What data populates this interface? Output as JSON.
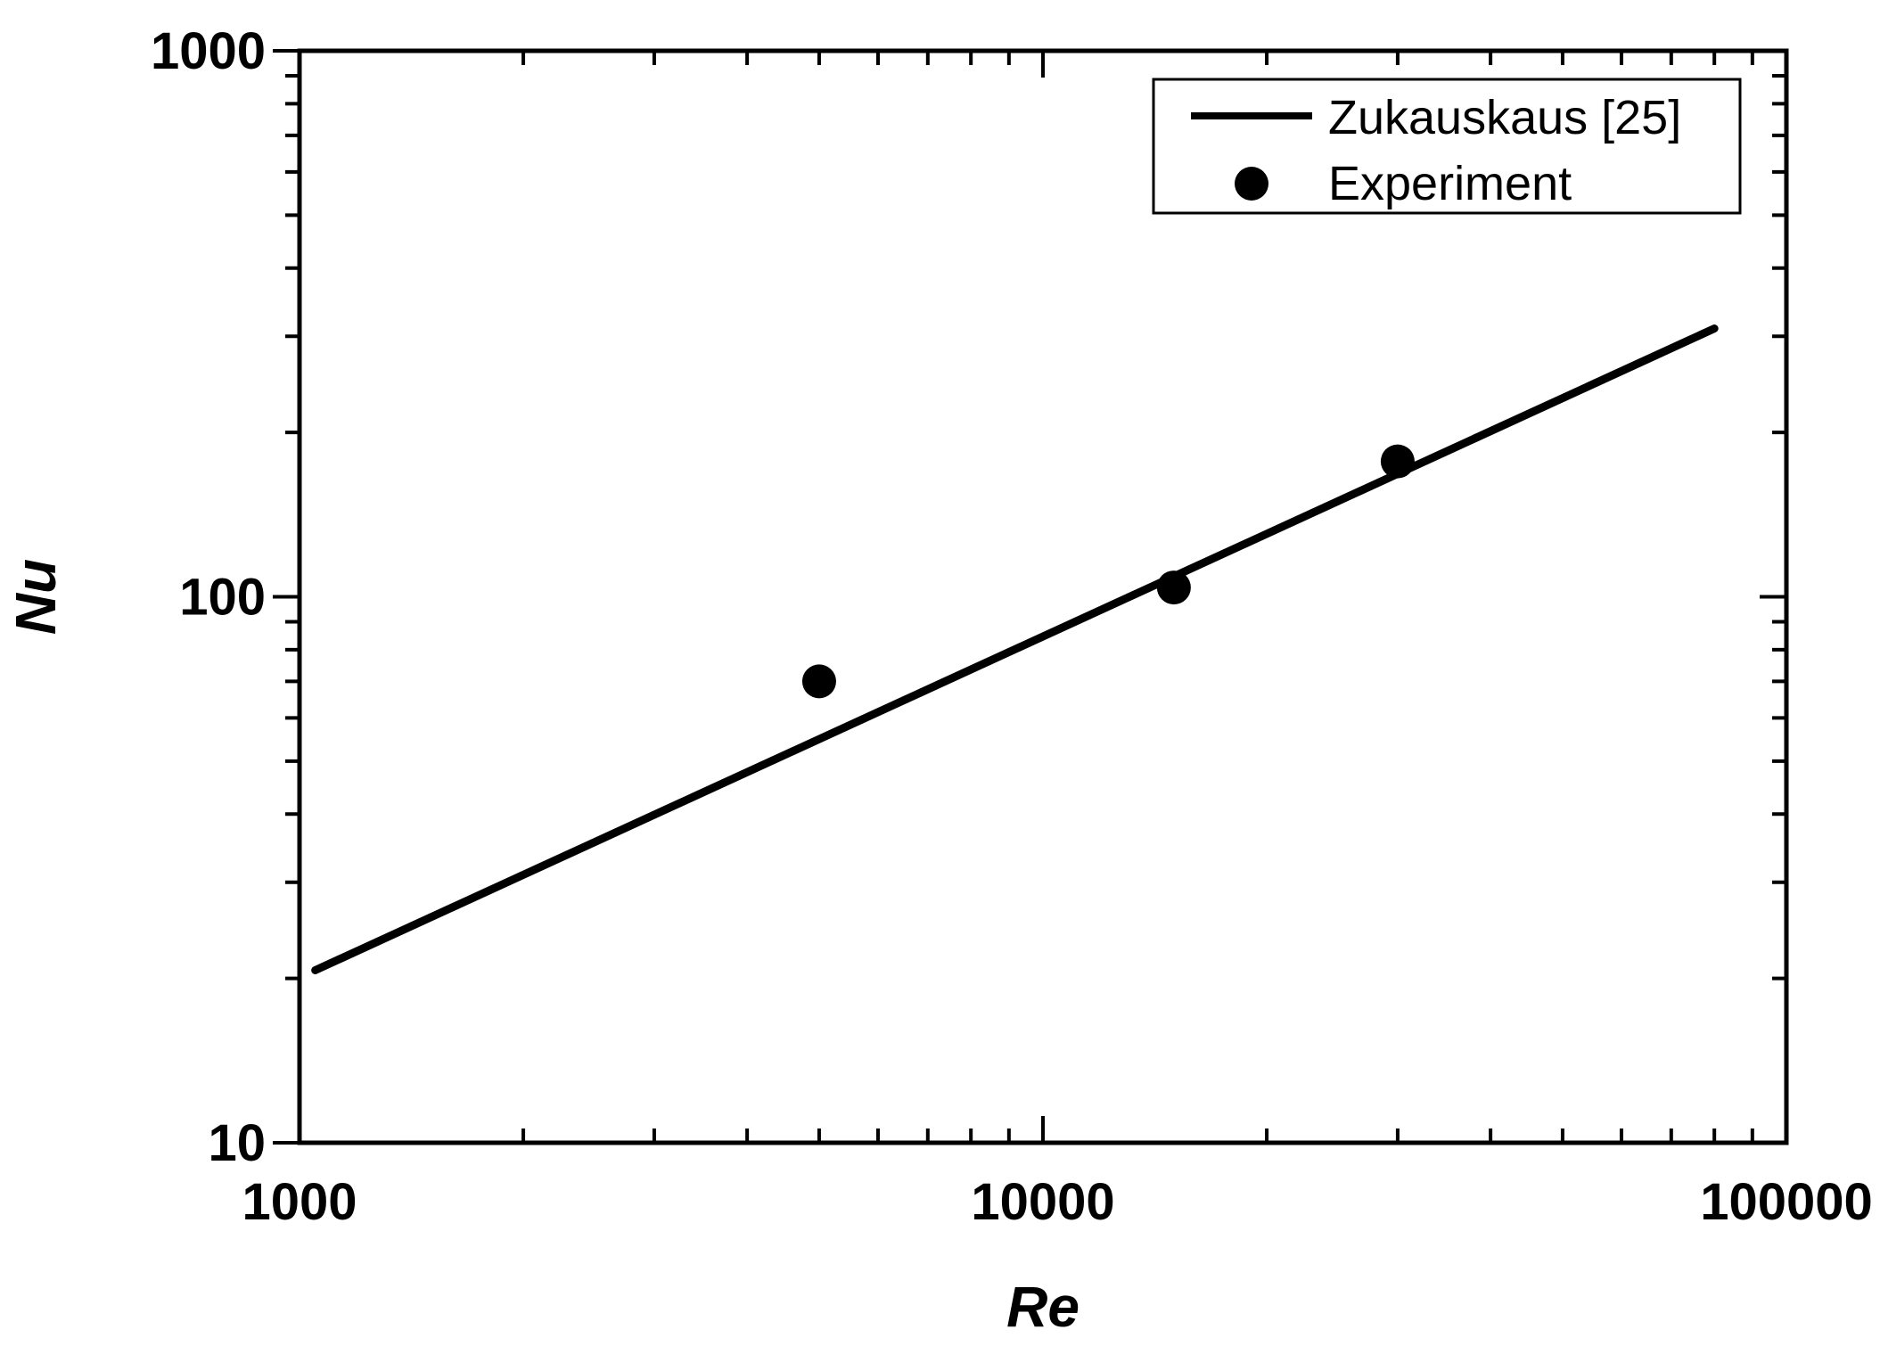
{
  "chart_data": {
    "type": "line",
    "xlabel": "Re",
    "ylabel": "Nu",
    "xscale": "log",
    "yscale": "log",
    "xlim": [
      1000,
      100000
    ],
    "ylim": [
      10,
      1000
    ],
    "grid": false,
    "legend_position": "top-right",
    "x_ticks": [
      {
        "value": 1000,
        "label": "1000"
      },
      {
        "value": 10000,
        "label": "10000"
      },
      {
        "value": 100000,
        "label": "100000"
      }
    ],
    "y_ticks": [
      {
        "value": 10,
        "label": "10"
      },
      {
        "value": 100,
        "label": "100"
      },
      {
        "value": 1000,
        "label": "1000"
      }
    ],
    "series": [
      {
        "name": "Zukauskaus [25]",
        "style": "line",
        "color": "#000000",
        "x": [
          1050,
          80000
        ],
        "y": [
          20.7,
          310
        ]
      },
      {
        "name": "Experiment",
        "style": "marker",
        "color": "#000000",
        "x": [
          5000,
          15000,
          30000
        ],
        "y": [
          70,
          104,
          177
        ]
      }
    ]
  }
}
